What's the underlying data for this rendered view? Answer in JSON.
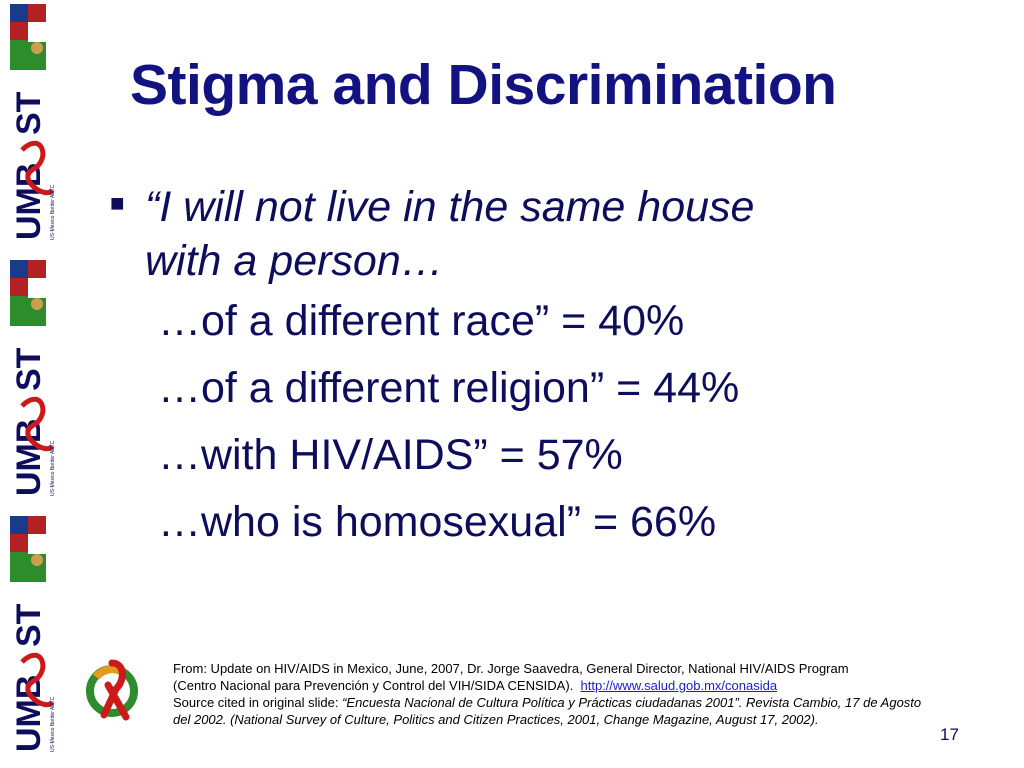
{
  "sidebar": {
    "badges": [
      {
        "brand": "UMB",
        "mark": "ST",
        "tagline": "US-Mexico Border AETC"
      },
      {
        "brand": "UMB",
        "mark": "ST",
        "tagline": "US-Mexico Border AETC"
      },
      {
        "brand": "UMB",
        "mark": "ST",
        "tagline": "US-Mexico Border AETC"
      }
    ]
  },
  "slide": {
    "title": "Stigma and Discrimination",
    "quote_line1": "“I will not live in the same house",
    "quote_line2": "with a person…",
    "items": [
      "…of a different race” = 40%",
      "…of a different religion” = 44%",
      "…with HIV/AIDS” = 57%",
      "…who is homosexual” = 66%"
    ],
    "source_line1": "From: Update on HIV/AIDS in Mexico, June, 2007, Dr. Jorge Saavedra, General Director, National HIV/AIDS Program",
    "source_line2": "(Centro Nacional para Prevención y Control del VIH/SIDA CENSIDA).",
    "source_link": "http://www.salud.gob.mx/conasida",
    "source_cited_label": "Source cited in original slide: ",
    "source_cited_text": "“Encuesta Nacional de Cultura Política y Prácticas ciudadanas 2001”. Revista Cambio, 17 de Agosto del 2002. (National Survey of Culture, Politics and Citizen Practices, 2001, Change Magazine, August 17, 2002).",
    "slide_number": "17"
  },
  "colors": {
    "title": "#121280",
    "body": "#0d0d5c",
    "ribbon": "#cc1a1a",
    "logo_green": "#2e8b2e",
    "logo_orange": "#e89a1a",
    "link": "#1a1ad8"
  }
}
